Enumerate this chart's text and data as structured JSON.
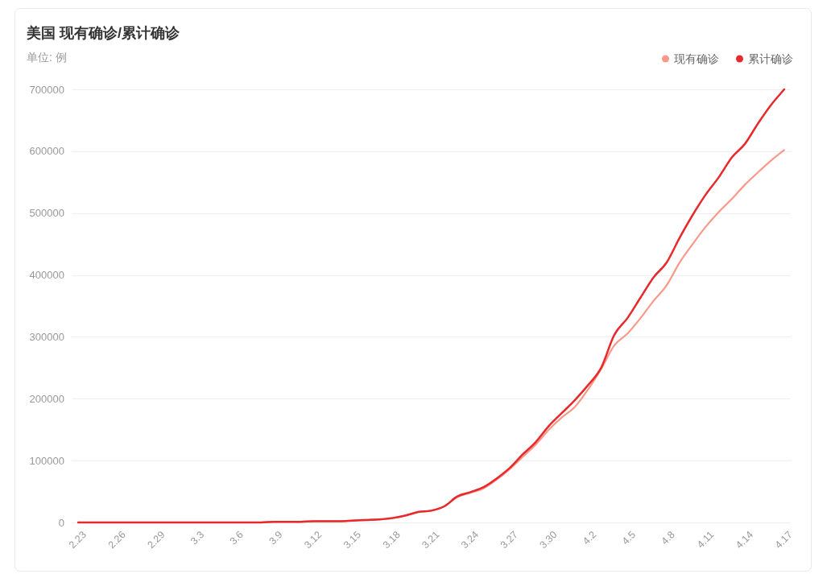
{
  "chart_data": {
    "type": "line",
    "title": "美国 现有确诊/累计确诊",
    "subtitle": "单位: 例",
    "categories": [
      "2.23",
      null,
      null,
      "2.26",
      null,
      null,
      "2.29",
      null,
      null,
      "3.3",
      null,
      null,
      "3.6",
      null,
      null,
      "3.9",
      null,
      null,
      "3.12",
      null,
      null,
      "3.15",
      null,
      null,
      "3.18",
      null,
      null,
      "3.21",
      null,
      null,
      "3.24",
      null,
      null,
      "3.27",
      null,
      null,
      "3.30",
      null,
      null,
      "4.2",
      null,
      null,
      "4.5",
      null,
      null,
      "4.8",
      null,
      null,
      "4.11",
      null,
      null,
      "4.14",
      null,
      null,
      "4.17"
    ],
    "series": [
      {
        "name": "现有确诊",
        "color": "#f9998a",
        "values": [
          0,
          0,
          0,
          0,
          0,
          0,
          0,
          0,
          0,
          0,
          0,
          0,
          0,
          0,
          0,
          1000,
          1000,
          1000,
          2000,
          2000,
          2000,
          3000,
          4000,
          5000,
          7000,
          11000,
          17000,
          19000,
          26000,
          41000,
          48000,
          55000,
          69000,
          86000,
          106000,
          126000,
          150000,
          170000,
          187000,
          215000,
          248000,
          286000,
          305000,
          330000,
          358000,
          383000,
          420000,
          450000,
          478000,
          502000,
          523000,
          546000,
          566000,
          585000,
          602000
        ]
      },
      {
        "name": "累计确诊",
        "color": "#e8292c",
        "values": [
          0,
          0,
          0,
          0,
          0,
          0,
          0,
          0,
          0,
          0,
          0,
          0,
          0,
          0,
          0,
          1000,
          1000,
          1000,
          2000,
          2000,
          2000,
          3000,
          4000,
          5000,
          7000,
          11000,
          17000,
          19000,
          26000,
          42000,
          49000,
          57000,
          71000,
          88000,
          110000,
          130000,
          156000,
          177000,
          198000,
          222000,
          250000,
          303000,
          330000,
          363000,
          396000,
          420000,
          460000,
          497000,
          530000,
          558000,
          590000,
          612000,
          645000,
          675000,
          700000
        ]
      }
    ],
    "ylim": [
      0,
      700000
    ],
    "yticks": [
      0,
      100000,
      200000,
      300000,
      400000,
      500000,
      600000,
      700000
    ],
    "grid": "y",
    "legend": "top right"
  }
}
